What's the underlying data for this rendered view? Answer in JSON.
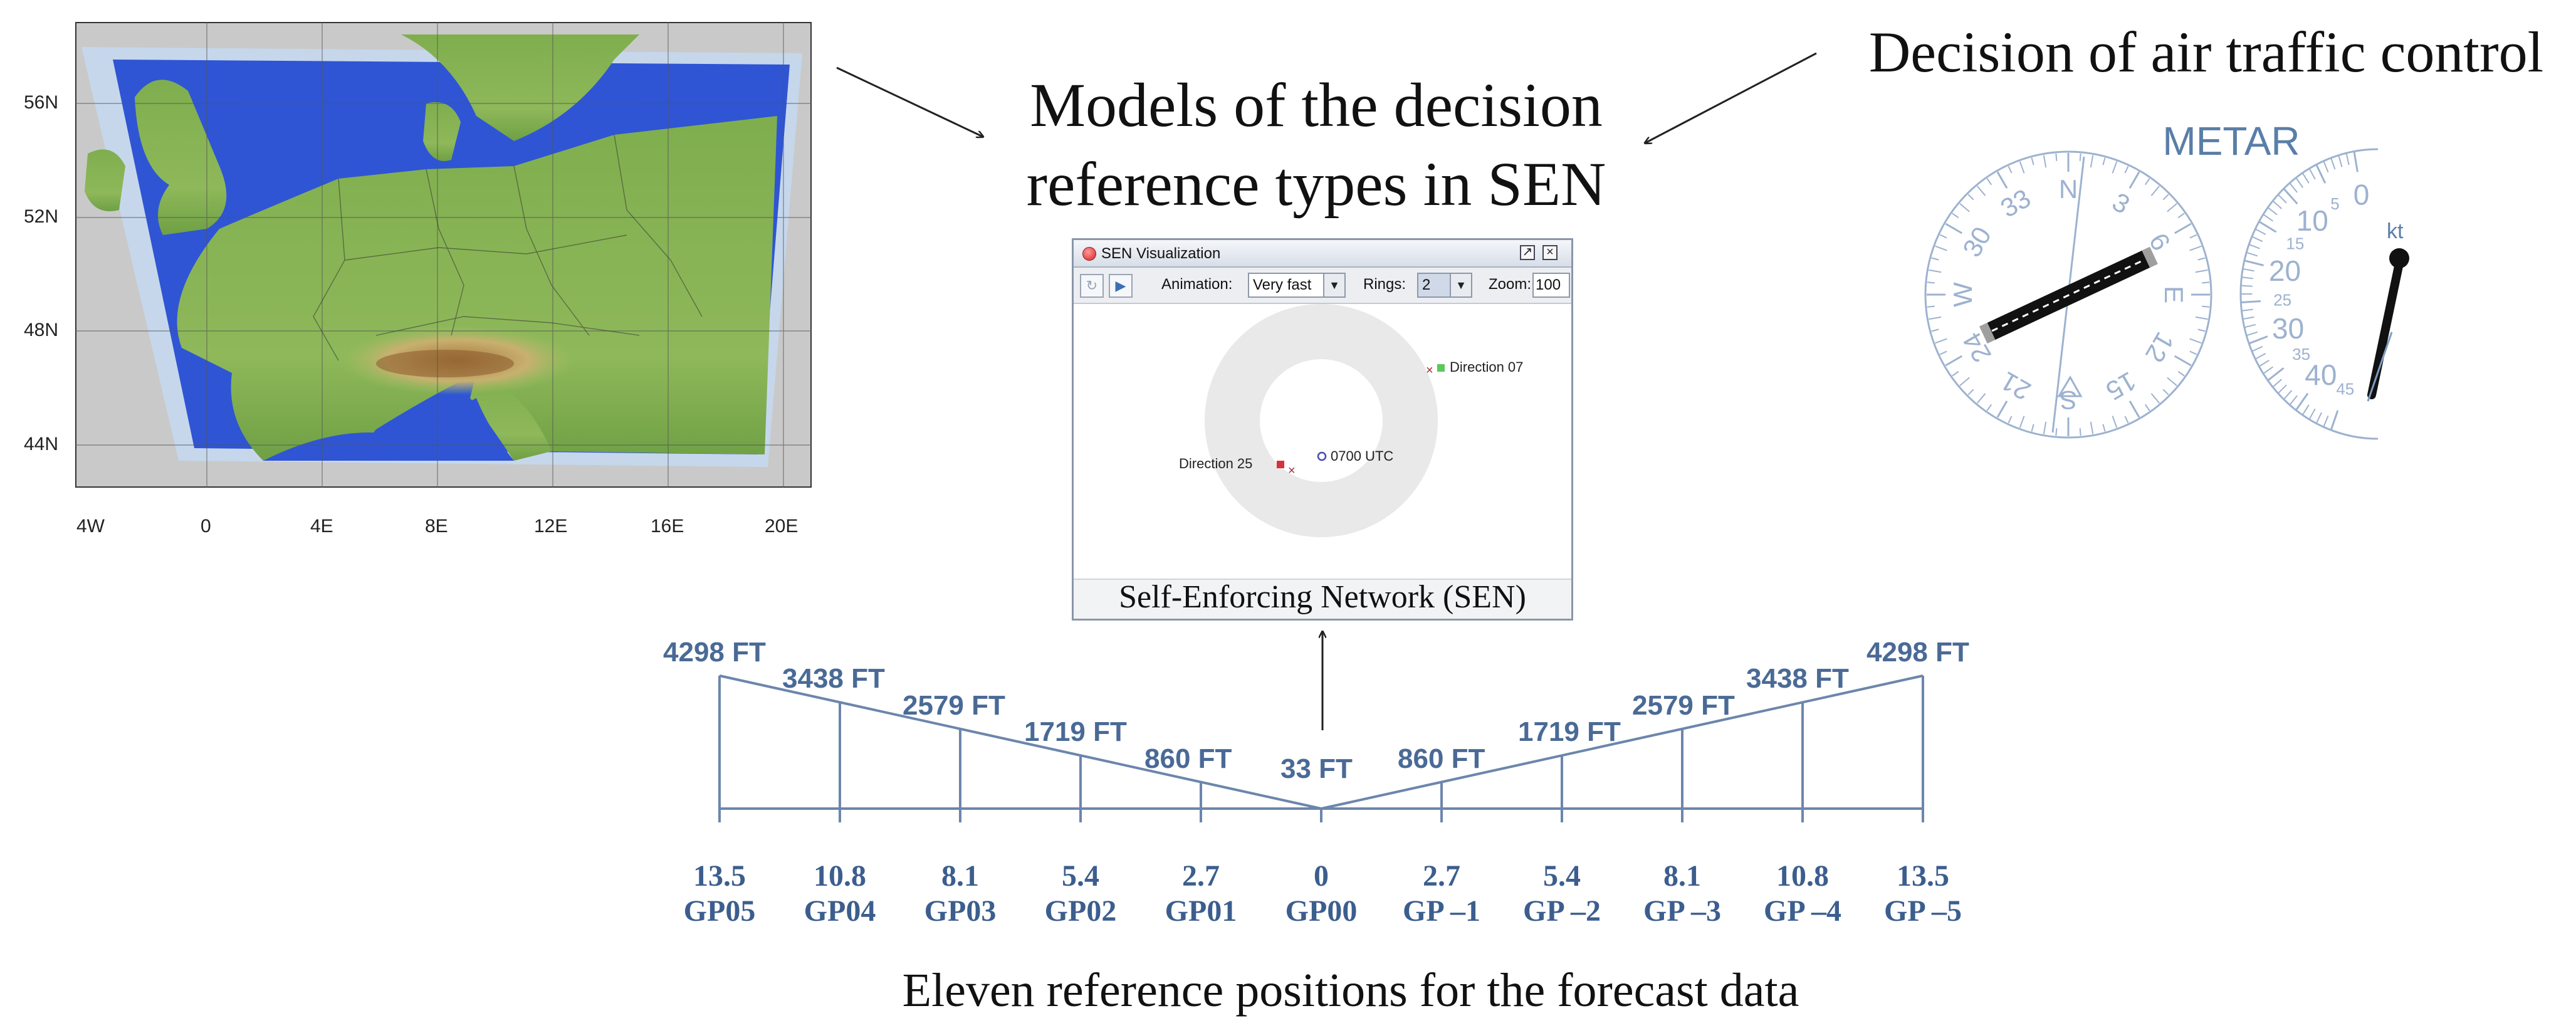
{
  "headings": {
    "models_line1": "Models of the decision",
    "models_line2": "reference types in SEN",
    "atc": "Decision of air traffic control",
    "bottom_caption": "Eleven reference positions for the forecast data"
  },
  "map": {
    "lat_labels": [
      "56N",
      "52N",
      "48N",
      "44N"
    ],
    "lon_labels": [
      "4W",
      "0",
      "4E",
      "8E",
      "12E",
      "16E",
      "20E"
    ],
    "colors": {
      "sea": "#2f55d4",
      "land_low": "#7fae4e",
      "land_mid": "#c8c27a",
      "alps": "#8a5a2a",
      "outside": "#c9c9c9",
      "frame": "#c5d8f0"
    }
  },
  "sen_window": {
    "title": "SEN Visualization",
    "toolbar": {
      "refresh_icon": "refresh-icon",
      "play_icon": "play-icon",
      "animation_label": "Animation:",
      "animation_value": "Very fast",
      "rings_label": "Rings:",
      "rings_value": "2",
      "zoom_label": "Zoom:",
      "zoom_value": "100"
    },
    "nodes": {
      "direction07": "Direction 07",
      "direction25": "Direction 25",
      "time": "0700 UTC"
    },
    "caption": "Self-Enforcing Network (SEN)",
    "colors": {
      "ring": "#e9e9e9",
      "direction07": "#5ac85a",
      "direction25": "#d8323c",
      "cross": "#a03030",
      "time_node": "#4a4ab0"
    }
  },
  "metar": {
    "label": "METAR",
    "compass_labels": [
      "N",
      "3",
      "6",
      "E",
      "12",
      "15",
      "S",
      "21",
      "24",
      "W",
      "30",
      "33"
    ],
    "wind_scale": [
      "0",
      "5",
      "10",
      "15",
      "20",
      "25",
      "30",
      "35",
      "40",
      "45"
    ],
    "wind_unit": "kt",
    "runway_heading_deg": 65,
    "colors": {
      "dial": "#7f9cc0",
      "runway": "#111111"
    }
  },
  "altitude_diagram": {
    "altitude_labels": [
      "4298 FT",
      "3438 FT",
      "2579 FT",
      "1719 FT",
      "860 FT",
      "33 FT",
      "860 FT",
      "1719 FT",
      "2579 FT",
      "3438 FT",
      "4298 FT"
    ],
    "positions": [
      {
        "value": "13.5",
        "name": "GP05"
      },
      {
        "value": "10.8",
        "name": "GP04"
      },
      {
        "value": "8.1",
        "name": "GP03"
      },
      {
        "value": "5.4",
        "name": "GP02"
      },
      {
        "value": "2.7",
        "name": "GP01"
      },
      {
        "value": "0",
        "name": "GP00"
      },
      {
        "value": "2.7",
        "name": "GP –1"
      },
      {
        "value": "5.4",
        "name": "GP –2"
      },
      {
        "value": "8.1",
        "name": "GP –3"
      },
      {
        "value": "10.8",
        "name": "GP –4"
      },
      {
        "value": "13.5",
        "name": "GP –5"
      }
    ],
    "line_color": "#6c86ac"
  }
}
